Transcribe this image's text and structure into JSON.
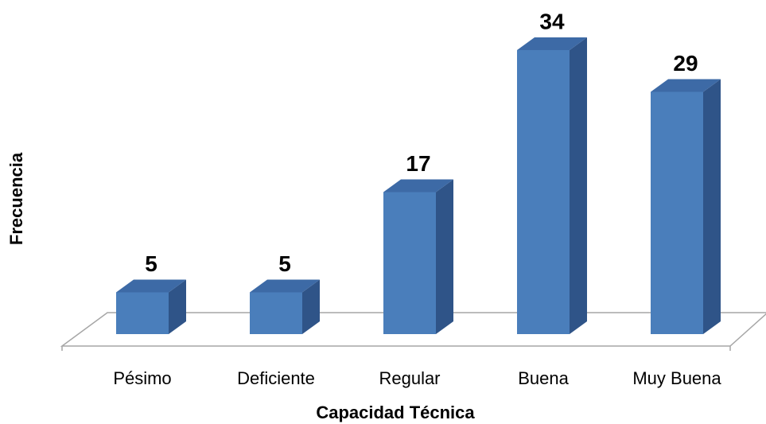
{
  "chart_data": {
    "type": "bar3d",
    "x_label": "Capacidad Técnica",
    "y_label": "Frecuencia",
    "categories": [
      "Pésimo",
      "Deficiente",
      "Regular",
      "Buena",
      "Muy Buena"
    ],
    "values": [
      5,
      5,
      17,
      34,
      29
    ],
    "color": "#4a7ebb"
  }
}
